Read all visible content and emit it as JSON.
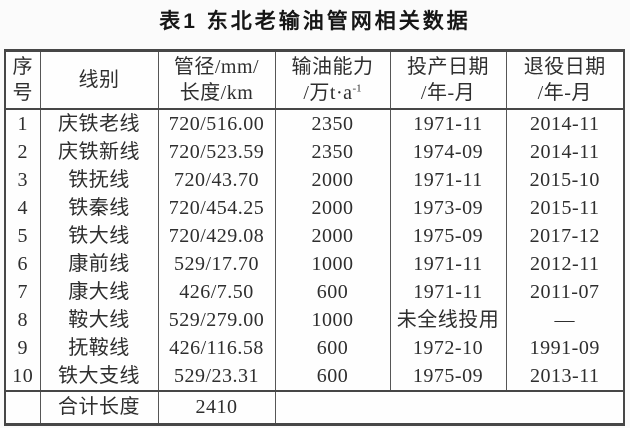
{
  "title": "表1  东北老输油管网相关数据",
  "colors": {
    "border": "#474747",
    "text": "#2e2e2e",
    "title_text": "#161616",
    "background": "#fbfbfb"
  },
  "table": {
    "headers": [
      {
        "line1": "序",
        "line2": "号"
      },
      {
        "line1": "线别",
        "line2": ""
      },
      {
        "line1": "管径/mm/",
        "line2": "长度/km"
      },
      {
        "line1": "输油能力",
        "line2": "/万t·a",
        "line2_sup": "-1"
      },
      {
        "line1": "投产日期",
        "line2": "/年-月"
      },
      {
        "line1": "退役日期",
        "line2": "/年-月"
      }
    ],
    "rows": [
      [
        "1",
        "庆铁老线",
        "720/516.00",
        "2350",
        "1971-11",
        "2014-11"
      ],
      [
        "2",
        "庆铁新线",
        "720/523.59",
        "2350",
        "1974-09",
        "2014-11"
      ],
      [
        "3",
        "铁抚线",
        "720/43.70",
        "2000",
        "1971-11",
        "2015-10"
      ],
      [
        "4",
        "铁秦线",
        "720/454.25",
        "2000",
        "1973-09",
        "2015-11"
      ],
      [
        "5",
        "铁大线",
        "720/429.08",
        "2000",
        "1975-09",
        "2017-12"
      ],
      [
        "6",
        "康前线",
        "529/17.70",
        "1000",
        "1971-11",
        "2012-11"
      ],
      [
        "7",
        "康大线",
        "426/7.50",
        "600",
        "1971-11",
        "2011-07"
      ],
      [
        "8",
        "鞍大线",
        "529/279.00",
        "1000",
        "未全线投用",
        "—"
      ],
      [
        "9",
        "抚鞍线",
        "426/116.58",
        "600",
        "1972-10",
        "1991-09"
      ],
      [
        "10",
        "铁大支线",
        "529/23.31",
        "600",
        "1975-09",
        "2013-11"
      ]
    ],
    "footer": {
      "label": "合计长度",
      "value": "2410"
    }
  }
}
